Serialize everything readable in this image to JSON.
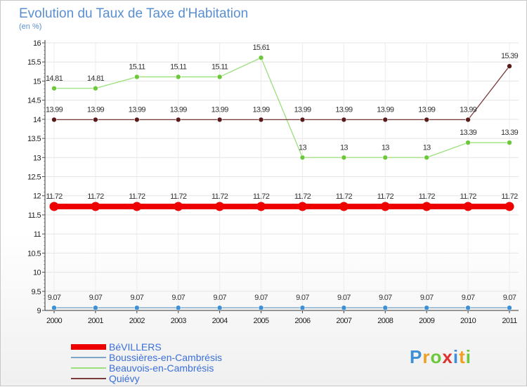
{
  "chart_data": {
    "type": "line",
    "title": "Evolution du Taux de Taxe d'Habitation",
    "subtitle": "(en %)",
    "xlabel": "",
    "ylabel": "",
    "ylim": [
      9,
      16
    ],
    "yticks": [
      "9",
      "9.5",
      "10",
      "10.5",
      "11",
      "11.5",
      "12",
      "12.5",
      "13",
      "13.5",
      "14",
      "14.5",
      "15",
      "15.5",
      "16"
    ],
    "ytick_values": [
      9,
      9.5,
      10,
      10.5,
      11,
      11.5,
      12,
      12.5,
      13,
      13.5,
      14,
      14.5,
      15,
      15.5,
      16
    ],
    "categories": [
      "2000",
      "2001",
      "2002",
      "2003",
      "2004",
      "2005",
      "2006",
      "2007",
      "2008",
      "2009",
      "2010",
      "2011"
    ],
    "series": [
      {
        "name": "BéVILLERS",
        "color": "#ee0000",
        "marker": "#ee0000",
        "values": [
          11.72,
          11.72,
          11.72,
          11.72,
          11.72,
          11.72,
          11.72,
          11.72,
          11.72,
          11.72,
          11.72,
          11.72
        ],
        "labels": [
          "11.72",
          "11.72",
          "11.72",
          "11.72",
          "11.72",
          "11.72",
          "11.72",
          "11.72",
          "11.72",
          "11.72",
          "11.72",
          "11.72"
        ]
      },
      {
        "name": "Boussières-en-Cambrésis",
        "color": "#7aa6c8",
        "marker": "#3d8fd6",
        "values": [
          9.07,
          9.07,
          9.07,
          9.07,
          9.07,
          9.07,
          9.07,
          9.07,
          9.07,
          9.07,
          9.07,
          9.07
        ],
        "labels": [
          "9.07",
          "9.07",
          "9.07",
          "9.07",
          "9.07",
          "9.07",
          "9.07",
          "9.07",
          "9.07",
          "9.07",
          "9.07",
          "9.07"
        ]
      },
      {
        "name": "Beauvois-en-Cambrésis",
        "color": "#9ae07a",
        "marker": "#6cc83a",
        "values": [
          14.81,
          14.81,
          15.11,
          15.11,
          15.11,
          15.61,
          13,
          13,
          13,
          13,
          13.39,
          13.39
        ],
        "labels": [
          "14.81",
          "14.81",
          "15.11",
          "15.11",
          "15.11",
          "15.61",
          "13",
          "13",
          "13",
          "13",
          "13.39",
          "13.39"
        ]
      },
      {
        "name": "Quiévy",
        "color": "#7a3a3a",
        "marker": "#5a1a1a",
        "values": [
          13.99,
          13.99,
          13.99,
          13.99,
          13.99,
          13.99,
          13.99,
          13.99,
          13.99,
          13.99,
          13.99,
          15.39
        ],
        "labels": [
          "13.99",
          "13.99",
          "13.99",
          "13.99",
          "13.99",
          "13.99",
          "13.99",
          "13.99",
          "13.99",
          "13.99",
          "13.99",
          "15.39"
        ]
      }
    ],
    "legend_position": "bottom-left"
  },
  "logo": {
    "letters": [
      "P",
      "r",
      "o",
      "x",
      "i",
      "t",
      "i"
    ],
    "colors": [
      "#3d8fd6",
      "#f0a020",
      "#6cc83a",
      "#e03030",
      "#3d8fd6",
      "#f0a020",
      "#6cc83a"
    ]
  }
}
